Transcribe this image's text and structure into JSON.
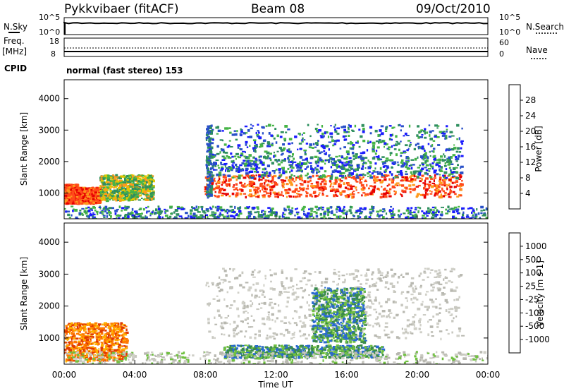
{
  "header": {
    "station": "Pykkvibaer (fitACF)",
    "beam": "Beam 08",
    "date": "09/Oct/2010"
  },
  "summary": {
    "left_labels": {
      "nsky": "N.Sky",
      "freq": "Freq.",
      "freq_unit": "[MHz]",
      "cpid": "CPID"
    },
    "right_labels": {
      "nsearch": "N.Search",
      "nave": "Nave"
    },
    "nsky_ticks": [
      "10^5",
      "10^0"
    ],
    "nsearch_ticks": [
      "10^5",
      "10^0"
    ],
    "freq_ticks": [
      "18",
      "8"
    ],
    "nave_ticks": [
      "60",
      "0"
    ],
    "cpid_text": "normal (fast stereo) 153"
  },
  "colors": {
    "power_scale": [
      "#1a1aff",
      "#2850c8",
      "#2f8f5f",
      "#46b446",
      "#e0c800",
      "#ff9a1e",
      "#ff4a1a",
      "#e60000"
    ],
    "velocity_scale": [
      "#1a3ab4",
      "#2a6ad0",
      "#3a8a4a",
      "#70c040",
      "#c0c0c0",
      "#ffb000",
      "#ff7a00",
      "#e03a00",
      "#e00000"
    ],
    "ground_scatter": "#c8c8c0"
  },
  "chart_data": [
    {
      "type": "heatmap",
      "name": "power",
      "xlabel": "",
      "ylabel": "Slant Range [km]",
      "y_ticks": [
        "1000",
        "2000",
        "3000",
        "4000"
      ],
      "y_tick_values": [
        1000,
        2000,
        3000,
        4000
      ],
      "ylim": [
        180,
        4600
      ],
      "xlim": [
        "00:00",
        "24:00"
      ],
      "colorbar_label": "Power [dB]",
      "colorbar_ticks": [
        "4",
        "8",
        "12",
        "16",
        "20",
        "24",
        "28"
      ],
      "colorbar_range": [
        0,
        30
      ],
      "features": [
        {
          "t": [
            0.0,
            0.7
          ],
          "range": [
            700,
            1300
          ],
          "level": "high"
        },
        {
          "t": [
            0.6,
            2.0
          ],
          "range": [
            700,
            1200
          ],
          "level": "high"
        },
        {
          "t": [
            2.0,
            5.0
          ],
          "range": [
            800,
            1600
          ],
          "level": "medium"
        },
        {
          "t": [
            7.9,
            22.5
          ],
          "range": [
            900,
            1600
          ],
          "level": "high"
        },
        {
          "t": [
            8.0,
            22.5
          ],
          "range": [
            1700,
            3200
          ],
          "level": "low"
        },
        {
          "t": [
            0.0,
            24.0
          ],
          "range": [
            180,
            600
          ],
          "level": "low"
        }
      ]
    },
    {
      "type": "heatmap",
      "name": "velocity",
      "xlabel": "Time UT",
      "ylabel": "Slant Range [km]",
      "y_ticks": [
        "1000",
        "2000",
        "3000",
        "4000"
      ],
      "y_tick_values": [
        1000,
        2000,
        3000,
        4000
      ],
      "ylim": [
        180,
        4600
      ],
      "x_ticks": [
        "00:00",
        "04:00",
        "08:00",
        "12:00",
        "16:00",
        "20:00",
        "00:00"
      ],
      "x_tick_hours": [
        0,
        4,
        8,
        12,
        16,
        20,
        24
      ],
      "colorbar_label": "Velocity [m s-1]",
      "colorbar_ticks": [
        "1000",
        "500",
        "100",
        "25",
        "-25",
        "-100",
        "-500",
        "-1000"
      ],
      "features": [
        {
          "t": [
            0.0,
            3.5
          ],
          "range": [
            300,
            1500
          ],
          "level": "toward"
        },
        {
          "t": [
            8.0,
            22.5
          ],
          "range": [
            1000,
            3200
          ],
          "level": "ground"
        },
        {
          "t": [
            9.0,
            18.0
          ],
          "range": [
            400,
            800
          ],
          "level": "away"
        },
        {
          "t": [
            14.0,
            17.0
          ],
          "range": [
            900,
            2600
          ],
          "level": "away"
        }
      ]
    }
  ]
}
